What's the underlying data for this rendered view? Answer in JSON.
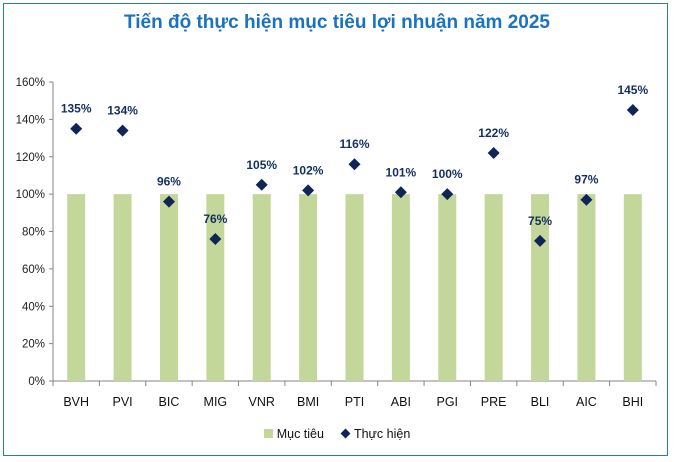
{
  "chart_data": {
    "type": "bar",
    "title": "Tiến độ thực hiện mục tiêu lợi nhuận năm 2025",
    "xlabel": "",
    "ylabel": "",
    "ylim": [
      0,
      160
    ],
    "yticks": [
      "0%",
      "20%",
      "40%",
      "60%",
      "80%",
      "100%",
      "120%",
      "140%",
      "160%"
    ],
    "ytick_values": [
      0,
      20,
      40,
      60,
      80,
      100,
      120,
      140,
      160
    ],
    "grid": false,
    "legend_position": "bottom",
    "categories": [
      "BVH",
      "PVI",
      "BIC",
      "MIG",
      "VNR",
      "BMI",
      "PTI",
      "ABI",
      "PGI",
      "PRE",
      "BLI",
      "AIC",
      "BHI"
    ],
    "series": [
      {
        "name": "Mục tiêu",
        "kind": "bar",
        "color": "#c4d79b",
        "values": [
          100,
          100,
          100,
          100,
          100,
          100,
          100,
          100,
          100,
          100,
          100,
          100,
          100
        ]
      },
      {
        "name": "Thực hiện",
        "kind": "marker-diamond",
        "color": "#0f2557",
        "values": [
          135,
          134,
          96,
          76,
          105,
          102,
          116,
          101,
          100,
          122,
          75,
          97,
          145
        ],
        "labels": [
          "135%",
          "134%",
          "96%",
          "76%",
          "105%",
          "102%",
          "116%",
          "101%",
          "100%",
          "122%",
          "75%",
          "97%",
          "145%"
        ]
      }
    ]
  },
  "colors": {
    "title": "#1a73c0",
    "frame": "#2a7ab5",
    "axis": "#868686"
  }
}
